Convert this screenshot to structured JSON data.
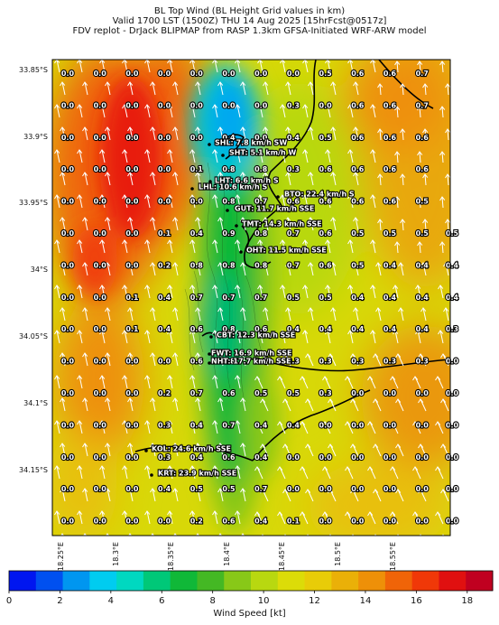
{
  "title": {
    "line1": "BL Top Wind (BL Height Grid values in km)",
    "line2": "Valid 1700 LST (1500Z) THU 14 Aug 2025 [15hrFcst@0517z]",
    "line3": "FDV replot - DrJack BLIPMAP from RASP 1.3km GFSA-Initiated WRF-ARW model"
  },
  "lat_labels": [
    "33.85°S",
    "33.9°S",
    "33.95°S",
    "34°S",
    "34.05°S",
    "34.1°S",
    "34.15°S"
  ],
  "lon_labels": [
    "18.25°E",
    "18.3°E",
    "18.35°E",
    "18.4°E",
    "18.45°E",
    "18.5°E",
    "18.55°E"
  ],
  "colorbar": {
    "title": "Wind Speed [kt]",
    "ticks": [
      "0",
      "2",
      "4",
      "6",
      "8",
      "10",
      "12",
      "14",
      "16",
      "18"
    ],
    "colors": [
      "#0016f0",
      "#0050f0",
      "#0096f0",
      "#00ccf0",
      "#00d8c0",
      "#00c878",
      "#10b838",
      "#44b824",
      "#88c818",
      "#b8d810",
      "#dcdc08",
      "#e8cc08",
      "#eab008",
      "#ee9008",
      "#f06408",
      "#f03808",
      "#e01010",
      "#c00020"
    ]
  },
  "grid_values": [
    [
      "0.0",
      "0.0",
      "0.0",
      "0.0",
      "0.0",
      "0.0",
      "0.0",
      "0.0",
      "0.5",
      "0.6",
      "0.6",
      "0.7",
      ""
    ],
    [
      "0.0",
      "0.0",
      "0.0",
      "0.0",
      "0.0",
      "0.0",
      "0.0",
      "0.3",
      "0.0",
      "0.6",
      "0.6",
      "0.7",
      ""
    ],
    [
      "0.0",
      "0.0",
      "0.0",
      "0.0",
      "0.0",
      "0.4",
      "0.0",
      "0.4",
      "0.5",
      "0.6",
      "0.6",
      "0.6",
      ""
    ],
    [
      "0.0",
      "0.0",
      "0.0",
      "0.0",
      "0.1",
      "0.8",
      "0.8",
      "0.3",
      "0.6",
      "0.6",
      "0.6",
      "0.6",
      ""
    ],
    [
      "0.0",
      "0.0",
      "0.0",
      "0.0",
      "0.0",
      "0.8",
      "0.7",
      "0.6",
      "0.6",
      "0.6",
      "0.6",
      "0.5",
      ""
    ],
    [
      "0.0",
      "0.0",
      "0.0",
      "0.1",
      "0.4",
      "0.9",
      "0.8",
      "0.7",
      "0.6",
      "0.5",
      "0.5",
      "0.5",
      "0.5"
    ],
    [
      "0.0",
      "0.0",
      "0.0",
      "0.2",
      "0.8",
      "0.8",
      "0.8",
      "0.7",
      "0.6",
      "0.5",
      "0.4",
      "0.4",
      "0.4"
    ],
    [
      "0.0",
      "0.0",
      "0.1",
      "0.4",
      "0.7",
      "0.7",
      "0.7",
      "0.5",
      "0.5",
      "0.4",
      "0.4",
      "0.4",
      "0.4"
    ],
    [
      "0.0",
      "0.0",
      "0.1",
      "0.4",
      "0.6",
      "0.8",
      "0.6",
      "0.4",
      "0.4",
      "0.4",
      "0.4",
      "0.4",
      "0.3"
    ],
    [
      "0.0",
      "0.0",
      "0.0",
      "0.0",
      "0.6",
      "0.8",
      "0.6",
      "0.3",
      "0.3",
      "0.3",
      "0.3",
      "0.3",
      "0.0"
    ],
    [
      "0.0",
      "0.0",
      "0.0",
      "0.2",
      "0.7",
      "0.6",
      "0.5",
      "0.5",
      "0.3",
      "0.0",
      "0.0",
      "0.0",
      "0.0"
    ],
    [
      "0.0",
      "0.0",
      "0.0",
      "0.3",
      "0.4",
      "0.7",
      "0.4",
      "0.4",
      "0.0",
      "0.0",
      "0.0",
      "0.0",
      "0.0"
    ],
    [
      "0.0",
      "0.0",
      "0.0",
      "0.3",
      "0.4",
      "0.6",
      "0.4",
      "0.0",
      "0.0",
      "0.0",
      "0.0",
      "0.0",
      "0.0"
    ],
    [
      "0.0",
      "0.0",
      "0.0",
      "0.4",
      "0.5",
      "0.5",
      "0.7",
      "0.0",
      "0.0",
      "0.0",
      "0.0",
      "0.0",
      "0.0"
    ],
    [
      "0.0",
      "0.0",
      "0.0",
      "0.0",
      "0.2",
      "0.6",
      "0.4",
      "0.1",
      "0.0",
      "0.0",
      "0.0",
      "0.0",
      "0.0"
    ]
  ],
  "stations": [
    {
      "label": "SHL: 7.8 km/h SW"
    },
    {
      "label": "SHT: 5.1 km/h W"
    },
    {
      "label": "LHT: 6.6 km/h S"
    },
    {
      "label": "LHL: 10.6 km/h S"
    },
    {
      "label": "BTO: 22.4 km/h S"
    },
    {
      "label": "GUT: 11.7 km/h SSE"
    },
    {
      "label": "TMT: 14.3 km/h SSE"
    },
    {
      "label": "OHT: 11.5 km/h SSE"
    },
    {
      "label": "CBT: 12.3 km/h SSE"
    },
    {
      "label": "FWT: 16.9 km/h SSE"
    },
    {
      "label": "NHT: 17.7 km/h SSE"
    },
    {
      "label": "KOL: 24.6 km/h SSE"
    },
    {
      "label": "KRT: 23.9 km/h SSE"
    }
  ]
}
